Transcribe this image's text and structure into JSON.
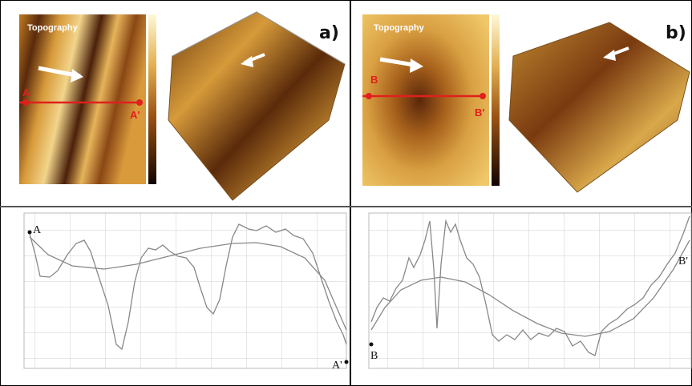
{
  "panels": [
    {
      "label": "a)",
      "image_title": "Topography",
      "marker_start": "A",
      "marker_end": "A'"
    },
    {
      "label": "b)",
      "image_title": "Topography",
      "marker_start": "B",
      "marker_end": "B'"
    }
  ]
}
